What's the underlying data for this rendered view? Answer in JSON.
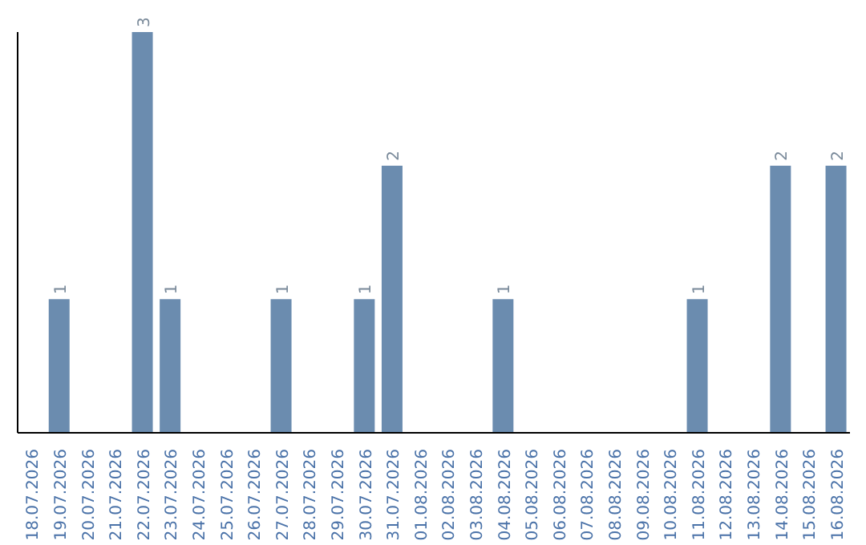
{
  "chart_data": {
    "type": "bar",
    "categories": [
      "18.07.2026",
      "19.07.2026",
      "20.07.2026",
      "21.07.2026",
      "22.07.2026",
      "23.07.2026",
      "24.07.2026",
      "25.07.2026",
      "26.07.2026",
      "27.07.2026",
      "28.07.2026",
      "29.07.2026",
      "30.07.2026",
      "31.07.2026",
      "01.08.2026",
      "02.08.2026",
      "03.08.2026",
      "04.08.2026",
      "05.08.2026",
      "06.08.2026",
      "07.08.2026",
      "08.08.2026",
      "09.08.2026",
      "10.08.2026",
      "11.08.2026",
      "12.08.2026",
      "13.08.2026",
      "14.08.2026",
      "15.08.2026",
      "16.08.2026"
    ],
    "values": [
      null,
      1,
      null,
      null,
      3,
      1,
      null,
      null,
      null,
      1,
      null,
      null,
      1,
      2,
      null,
      null,
      null,
      1,
      null,
      null,
      null,
      null,
      null,
      null,
      1,
      null,
      null,
      2,
      null,
      2
    ],
    "value_labels": [
      null,
      "1",
      null,
      null,
      "3",
      "1",
      null,
      null,
      null,
      "1",
      null,
      null,
      "1",
      "2",
      null,
      null,
      null,
      "1",
      null,
      null,
      null,
      null,
      null,
      null,
      "1",
      null,
      null,
      "2",
      null,
      "2"
    ],
    "color": "#6b8caf"
  }
}
